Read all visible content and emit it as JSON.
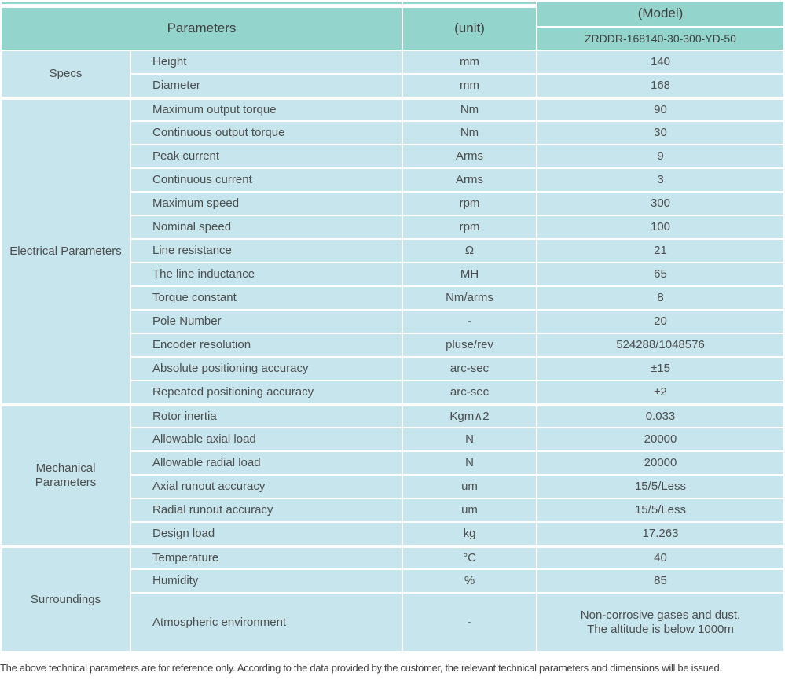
{
  "colors": {
    "header_bg": "#93d4cc",
    "row_bg": "#c7e5ed",
    "border": "#ffffff",
    "text": "#4d4d4d"
  },
  "table": {
    "header": {
      "parameters_label": "Parameters",
      "unit_label": "(unit)",
      "model_label": "(Model)",
      "model_value": "ZRDDR-168140-30-300-YD-50"
    },
    "sections": [
      {
        "group": "Specs",
        "rows": [
          [
            "Height",
            "mm",
            "140"
          ],
          [
            "Diameter",
            "mm",
            "168"
          ]
        ]
      },
      {
        "group": "Electrical Parameters",
        "rows": [
          [
            "Maximum output torque",
            "Nm",
            "90"
          ],
          [
            "Continuous output torque",
            "Nm",
            "30"
          ],
          [
            "Peak current",
            "Arms",
            "9"
          ],
          [
            "Continuous current",
            "Arms",
            "3"
          ],
          [
            "Maximum speed",
            "rpm",
            "300"
          ],
          [
            "Nominal speed",
            "rpm",
            "100"
          ],
          [
            "Line resistance",
            "Ω",
            "21"
          ],
          [
            "The line inductance",
            "MH",
            "65"
          ],
          [
            "Torque constant",
            "Nm/arms",
            "8"
          ],
          [
            "Pole Number",
            "-",
            "20"
          ],
          [
            "Encoder resolution",
            "pluse/rev",
            "524288/1048576"
          ],
          [
            "Absolute positioning accuracy",
            "arc-sec",
            "±15"
          ],
          [
            "Repeated positioning accuracy",
            "arc-sec",
            "±2"
          ]
        ]
      },
      {
        "group": "Mechanical Parameters",
        "rows": [
          [
            "Rotor inertia",
            "Kgm∧2",
            "0.033"
          ],
          [
            "Allowable axial load",
            "N",
            "20000"
          ],
          [
            "Allowable radial load",
            "N",
            "20000"
          ],
          [
            "Axial runout accuracy",
            "um",
            "15/5/Less"
          ],
          [
            "Radial runout accuracy",
            "um",
            "15/5/Less"
          ],
          [
            "Design load",
            "kg",
            "17.263"
          ]
        ]
      },
      {
        "group": "Surroundings",
        "rows": [
          [
            "Temperature",
            "°C",
            "40"
          ],
          [
            "Humidity",
            "%",
            "85"
          ],
          [
            "Atmospheric environment",
            "-",
            "Non-corrosive gases and dust,\nThe altitude is below 1000m"
          ]
        ]
      }
    ],
    "footnote": "The above technical parameters are for reference only. According to the data provided by the customer, the relevant technical parameters and dimensions will be issued."
  }
}
